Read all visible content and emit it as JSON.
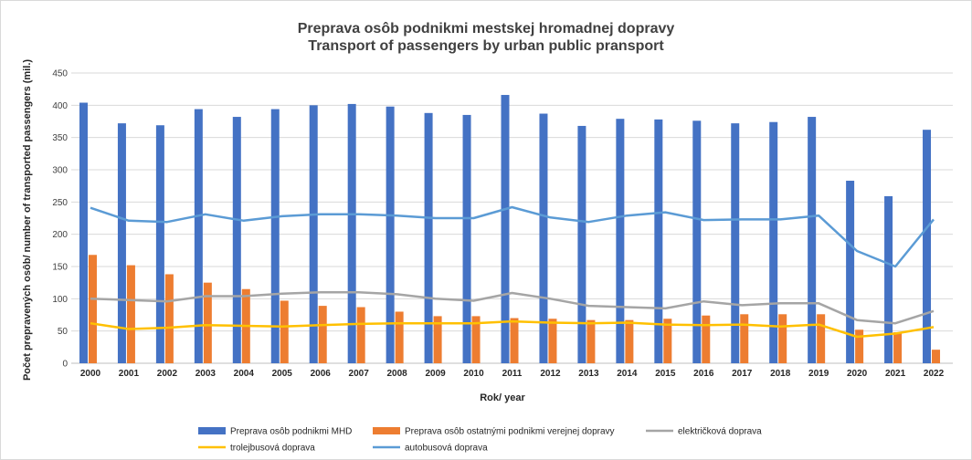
{
  "chart_data": {
    "type": "bar",
    "title": "Preprava osôb podnikmi mestskej hromadnej dopravy",
    "subtitle": "Transport of passengers by urban public pransport",
    "xlabel": "Rok/ year",
    "ylabel": "Počet prepravených osôb/ number of transported passengers (mil.)",
    "ylim": [
      0,
      450
    ],
    "yticks": [
      "0",
      "50",
      "100",
      "150",
      "200",
      "250",
      "300",
      "350",
      "400",
      "450"
    ],
    "grid": true,
    "legend_position": "bottom",
    "categories": [
      "2000",
      "2001",
      "2002",
      "2003",
      "2004",
      "2005",
      "2006",
      "2007",
      "2008",
      "2009",
      "2010",
      "2011",
      "2012",
      "2013",
      "2014",
      "2015",
      "2016",
      "2017",
      "2018",
      "2019",
      "2020",
      "2021",
      "2022"
    ],
    "series": [
      {
        "name": "Preprava osôb podnikmi MHD",
        "kind": "bar",
        "color": "#4472C4",
        "values": [
          404,
          372,
          369,
          394,
          382,
          394,
          400,
          402,
          398,
          388,
          385,
          416,
          387,
          368,
          379,
          378,
          376,
          372,
          374,
          382,
          283,
          259,
          362
        ]
      },
      {
        "name": "Preprava osôb ostatnými podnikmi verejnej dopravy",
        "kind": "bar",
        "color": "#ED7D31",
        "values": [
          168,
          152,
          138,
          125,
          115,
          97,
          89,
          87,
          80,
          73,
          73,
          70,
          69,
          67,
          67,
          69,
          74,
          76,
          76,
          76,
          52,
          48,
          21
        ]
      },
      {
        "name": "električková doprava",
        "kind": "line",
        "color": "#A5A5A5",
        "values": [
          100,
          98,
          96,
          104,
          104,
          108,
          110,
          110,
          107,
          100,
          97,
          109,
          100,
          89,
          87,
          85,
          96,
          90,
          93,
          93,
          67,
          62,
          81
        ]
      },
      {
        "name": "trolejbusová doprava",
        "kind": "line",
        "color": "#FFC000",
        "values": [
          62,
          53,
          55,
          59,
          58,
          57,
          59,
          61,
          62,
          62,
          62,
          65,
          63,
          62,
          63,
          60,
          59,
          60,
          57,
          60,
          41,
          46,
          56
        ]
      },
      {
        "name": "autobusová doprava",
        "kind": "line",
        "color": "#5B9BD5",
        "values": [
          241,
          221,
          219,
          231,
          221,
          228,
          231,
          231,
          229,
          225,
          225,
          242,
          226,
          219,
          229,
          234,
          222,
          223,
          223,
          229,
          174,
          150,
          223
        ]
      }
    ]
  }
}
